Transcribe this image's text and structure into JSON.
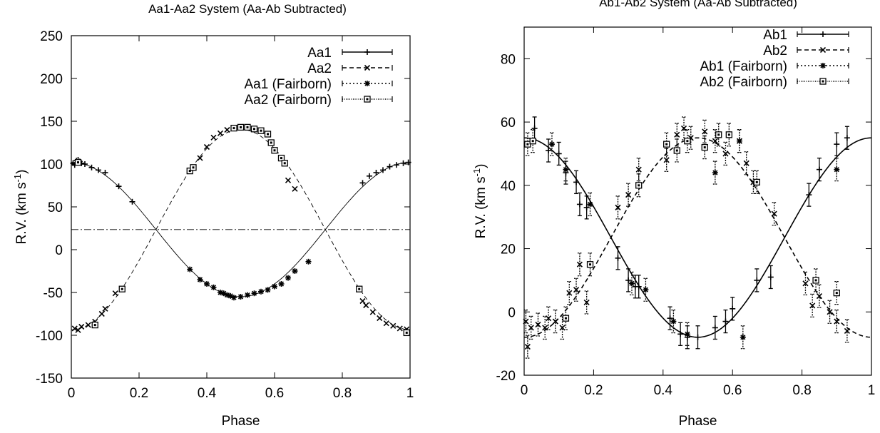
{
  "chart_data": [
    {
      "type": "line",
      "title": "Aa1-Aa2 System (Aa-Ab Subtracted)",
      "xlabel": "Phase",
      "ylabel": "R.V. (km s",
      "ylabel_sup": "-1",
      "ylabel_tail": ")",
      "xlim": [
        0,
        1
      ],
      "ylim": [
        -150,
        250
      ],
      "xticks": [
        0,
        0.2,
        0.4,
        0.6,
        0.8,
        1
      ],
      "xtick_labels": [
        "0",
        "0.2",
        "0.4",
        "0.6",
        "0.8",
        "1"
      ],
      "yticks": [
        -150,
        -100,
        -50,
        0,
        50,
        100,
        150,
        200,
        250
      ],
      "ytick_labels": [
        "-150",
        "-100",
        "-50",
        "0",
        "50",
        "100",
        "150",
        "200",
        "250"
      ],
      "grid": false,
      "legend_position": "top-right",
      "reference_line": {
        "y": 23.5,
        "style": "dash-dot"
      },
      "series": [
        {
          "name": "Aa1",
          "style": "solid-line",
          "curve": {
            "gamma": 23.5,
            "K": 78.5,
            "phase0": 0,
            "cos_sign": 1
          },
          "points": [
            [
              0.005,
              101
            ],
            [
              0.01,
              99
            ],
            [
              0.015,
              104
            ],
            [
              0.02,
              105
            ],
            [
              0.025,
              103
            ],
            [
              0.03,
              101
            ],
            [
              0.04,
              100
            ],
            [
              0.06,
              96
            ],
            [
              0.08,
              93
            ],
            [
              0.1,
              90
            ],
            [
              0.14,
              74
            ],
            [
              0.18,
              56
            ],
            [
              0.86,
              78
            ],
            [
              0.88,
              86
            ],
            [
              0.9,
              90
            ],
            [
              0.92,
              93
            ],
            [
              0.94,
              97
            ],
            [
              0.96,
              99
            ],
            [
              0.98,
              101
            ],
            [
              0.995,
              102
            ]
          ]
        },
        {
          "name": "Aa2",
          "style": "dashed-line",
          "curve": {
            "gamma": 23.5,
            "K": 117,
            "phase0": 0,
            "cos_sign": -1
          },
          "points": [
            [
              0.01,
              -92
            ],
            [
              0.02,
              -94
            ],
            [
              0.03,
              -90
            ],
            [
              0.05,
              -88
            ],
            [
              0.07,
              -84
            ],
            [
              0.09,
              -75
            ],
            [
              0.1,
              -69
            ],
            [
              0.13,
              -51
            ],
            [
              0.38,
              107
            ],
            [
              0.4,
              120
            ],
            [
              0.42,
              131
            ],
            [
              0.44,
              136
            ],
            [
              0.46,
              140
            ],
            [
              0.64,
              81
            ],
            [
              0.66,
              71
            ],
            [
              0.86,
              -60
            ],
            [
              0.87,
              -65
            ],
            [
              0.89,
              -73
            ],
            [
              0.91,
              -80
            ],
            [
              0.93,
              -86
            ],
            [
              0.95,
              -89
            ],
            [
              0.97,
              -92
            ],
            [
              0.99,
              -93
            ]
          ]
        },
        {
          "name": "Aa1 (Fairborn)",
          "style": "dotted-line",
          "points": [
            [
              0.35,
              -23
            ],
            [
              0.38,
              -35
            ],
            [
              0.4,
              -40
            ],
            [
              0.42,
              -44
            ],
            [
              0.44,
              -50
            ],
            [
              0.45,
              -51
            ],
            [
              0.46,
              -53
            ],
            [
              0.47,
              -54
            ],
            [
              0.48,
              -56
            ],
            [
              0.5,
              -55
            ],
            [
              0.52,
              -53
            ],
            [
              0.54,
              -51
            ],
            [
              0.56,
              -49
            ],
            [
              0.58,
              -47
            ],
            [
              0.6,
              -43
            ],
            [
              0.62,
              -40
            ],
            [
              0.64,
              -33
            ],
            [
              0.66,
              -25
            ],
            [
              0.7,
              -14
            ]
          ]
        },
        {
          "name": "Aa2 (Fairborn)",
          "style": "fine-dotted-line",
          "points": [
            [
              0.02,
              102
            ],
            [
              0.07,
              -88
            ],
            [
              0.15,
              -46
            ],
            [
              0.35,
              92
            ],
            [
              0.36,
              96
            ],
            [
              0.48,
              142
            ],
            [
              0.5,
              143
            ],
            [
              0.52,
              143
            ],
            [
              0.54,
              141
            ],
            [
              0.56,
              139
            ],
            [
              0.58,
              135
            ],
            [
              0.59,
              125
            ],
            [
              0.6,
              116
            ],
            [
              0.62,
              107
            ],
            [
              0.63,
              101
            ],
            [
              0.85,
              -46
            ],
            [
              0.99,
              -97
            ]
          ]
        }
      ]
    },
    {
      "type": "line",
      "title": "Ab1-Ab2 System (Aa-Ab Subtracted)",
      "xlabel": "Phase",
      "ylabel": "R.V. (km s",
      "ylabel_sup": "-1",
      "ylabel_tail": ")",
      "xlim": [
        0,
        1
      ],
      "ylim": [
        -20,
        90
      ],
      "xticks": [
        0,
        0.2,
        0.4,
        0.6,
        0.8,
        1
      ],
      "xtick_labels": [
        "0",
        "0.2",
        "0.4",
        "0.6",
        "0.8",
        "1"
      ],
      "yticks": [
        -20,
        0,
        20,
        40,
        60,
        80
      ],
      "ytick_labels": [
        "-20",
        "0",
        "20",
        "40",
        "60",
        "80"
      ],
      "grid": false,
      "legend_position": "top-right",
      "series": [
        {
          "name": "Ab1",
          "style": "solid-line",
          "curve": {
            "gamma": 23.5,
            "K": 31.5,
            "phase0": 0,
            "cos_sign": 1
          },
          "points": [
            [
              0.03,
              58
            ],
            [
              0.07,
              51
            ],
            [
              0.1,
              50
            ],
            [
              0.12,
              44
            ],
            [
              0.15,
              41
            ],
            [
              0.16,
              34
            ],
            [
              0.18,
              33
            ],
            [
              0.27,
              17
            ],
            [
              0.3,
              10
            ],
            [
              0.32,
              8
            ],
            [
              0.33,
              8
            ],
            [
              0.42,
              -2
            ],
            [
              0.45,
              -7
            ],
            [
              0.47,
              -8
            ],
            [
              0.5,
              -8
            ],
            [
              0.55,
              -5
            ],
            [
              0.58,
              -3
            ],
            [
              0.6,
              1
            ],
            [
              0.67,
              10
            ],
            [
              0.71,
              11
            ],
            [
              0.82,
              37
            ],
            [
              0.85,
              45
            ],
            [
              0.9,
              53
            ],
            [
              0.93,
              55
            ]
          ]
        },
        {
          "name": "Ab2",
          "style": "dashed-line",
          "curve": {
            "gamma": 23.5,
            "K": 31.5,
            "phase0": 0,
            "cos_sign": -1
          },
          "points": [
            [
              0.005,
              -3
            ],
            [
              0.01,
              -11
            ],
            [
              0.02,
              -5
            ],
            [
              0.04,
              -4
            ],
            [
              0.06,
              -5
            ],
            [
              0.07,
              -2
            ],
            [
              0.09,
              -3
            ],
            [
              0.11,
              -5
            ],
            [
              0.13,
              6
            ],
            [
              0.15,
              7
            ],
            [
              0.16,
              15
            ],
            [
              0.18,
              3
            ],
            [
              0.27,
              33
            ],
            [
              0.3,
              37
            ],
            [
              0.33,
              45
            ],
            [
              0.41,
              48
            ],
            [
              0.44,
              56
            ],
            [
              0.46,
              58
            ],
            [
              0.48,
              55
            ],
            [
              0.52,
              57
            ],
            [
              0.55,
              54
            ],
            [
              0.58,
              50
            ],
            [
              0.62,
              54
            ],
            [
              0.64,
              47
            ],
            [
              0.66,
              41
            ],
            [
              0.72,
              31
            ],
            [
              0.81,
              9
            ],
            [
              0.83,
              2
            ],
            [
              0.85,
              5
            ],
            [
              0.88,
              0
            ],
            [
              0.9,
              -3
            ],
            [
              0.93,
              -6
            ]
          ]
        },
        {
          "name": "Ab1 (Fairborn)",
          "style": "dotted-line",
          "points": [
            [
              0.08,
              53
            ],
            [
              0.12,
              45
            ],
            [
              0.19,
              34
            ],
            [
              0.31,
              9
            ],
            [
              0.35,
              7
            ],
            [
              0.43,
              -3
            ],
            [
              0.47,
              -7
            ],
            [
              0.55,
              44
            ],
            [
              0.62,
              54
            ],
            [
              0.63,
              -8
            ],
            [
              0.9,
              45
            ]
          ]
        },
        {
          "name": "Ab2 (Fairborn)",
          "style": "fine-dotted-line",
          "points": [
            [
              0.01,
              53
            ],
            [
              0.025,
              54
            ],
            [
              0.12,
              -2
            ],
            [
              0.19,
              15
            ],
            [
              0.33,
              40
            ],
            [
              0.41,
              53
            ],
            [
              0.44,
              51
            ],
            [
              0.47,
              54
            ],
            [
              0.52,
              52
            ],
            [
              0.56,
              56
            ],
            [
              0.59,
              56
            ],
            [
              0.67,
              41
            ],
            [
              0.84,
              10
            ],
            [
              0.9,
              6
            ]
          ]
        }
      ]
    }
  ]
}
